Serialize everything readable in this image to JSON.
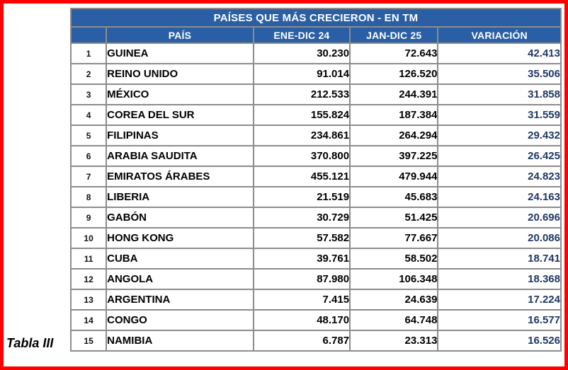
{
  "caption": "Tabla III",
  "table": {
    "title": "PAÍSES QUE MÁS CRECIERON - EN TM",
    "columns": {
      "rank": "",
      "country": "PAÍS",
      "period1": "ENE-DIC 24",
      "period2": "JAN-DIC 25",
      "variation": "VARIACIÓN"
    },
    "rows": [
      {
        "rank": "1",
        "country": "GUINEA",
        "period1": "30.230",
        "period2": "72.643",
        "variation": "42.413"
      },
      {
        "rank": "2",
        "country": "REINO UNIDO",
        "period1": "91.014",
        "period2": "126.520",
        "variation": "35.506"
      },
      {
        "rank": "3",
        "country": "MÉXICO",
        "period1": "212.533",
        "period2": "244.391",
        "variation": "31.858"
      },
      {
        "rank": "4",
        "country": "COREA DEL SUR",
        "period1": "155.824",
        "period2": "187.384",
        "variation": "31.559"
      },
      {
        "rank": "5",
        "country": "FILIPINAS",
        "period1": "234.861",
        "period2": "264.294",
        "variation": "29.432"
      },
      {
        "rank": "6",
        "country": "ARABIA SAUDITA",
        "period1": "370.800",
        "period2": "397.225",
        "variation": "26.425"
      },
      {
        "rank": "7",
        "country": "EMIRATOS ÁRABES",
        "period1": "455.121",
        "period2": "479.944",
        "variation": "24.823"
      },
      {
        "rank": "8",
        "country": "LIBERIA",
        "period1": "21.519",
        "period2": "45.683",
        "variation": "24.163"
      },
      {
        "rank": "9",
        "country": "GABÓN",
        "period1": "30.729",
        "period2": "51.425",
        "variation": "20.696"
      },
      {
        "rank": "10",
        "country": "HONG KONG",
        "period1": "57.582",
        "period2": "77.667",
        "variation": "20.086"
      },
      {
        "rank": "11",
        "country": "CUBA",
        "period1": "39.761",
        "period2": "58.502",
        "variation": "18.741"
      },
      {
        "rank": "12",
        "country": "ANGOLA",
        "period1": "87.980",
        "period2": "106.348",
        "variation": "18.368"
      },
      {
        "rank": "13",
        "country": "ARGENTINA",
        "period1": "7.415",
        "period2": "24.639",
        "variation": "17.224"
      },
      {
        "rank": "14",
        "country": "CONGO",
        "period1": "48.170",
        "period2": "64.748",
        "variation": "16.577"
      },
      {
        "rank": "15",
        "country": "NAMIBIA",
        "period1": "6.787",
        "period2": "23.313",
        "variation": "16.526"
      }
    ]
  },
  "colors": {
    "header_blue": "#2a5fa5",
    "grid_gray": "#8c8c8c",
    "variation_navy": "#1f3864",
    "frame_red": "#fe0000",
    "body_text": "#000000"
  },
  "chart_data": {
    "type": "table",
    "title": "PAÍSES QUE MÁS CRECIERON - EN TM",
    "units": "TM",
    "caption": "Tabla III",
    "columns": [
      "#",
      "PAÍS",
      "ENE-DIC 24",
      "JAN-DIC 25",
      "VARIACIÓN"
    ],
    "rows": [
      [
        1,
        "GUINEA",
        30230,
        72643,
        42413
      ],
      [
        2,
        "REINO UNIDO",
        91014,
        126520,
        35506
      ],
      [
        3,
        "MÉXICO",
        212533,
        244391,
        31858
      ],
      [
        4,
        "COREA DEL SUR",
        155824,
        187384,
        31559
      ],
      [
        5,
        "FILIPINAS",
        234861,
        264294,
        29432
      ],
      [
        6,
        "ARABIA SAUDITA",
        370800,
        397225,
        26425
      ],
      [
        7,
        "EMIRATOS ÁRABES",
        455121,
        479944,
        24823
      ],
      [
        8,
        "LIBERIA",
        21519,
        45683,
        24163
      ],
      [
        9,
        "GABÓN",
        30729,
        51425,
        20696
      ],
      [
        10,
        "HONG KONG",
        57582,
        77667,
        20086
      ],
      [
        11,
        "CUBA",
        39761,
        58502,
        18741
      ],
      [
        12,
        "ANGOLA",
        87980,
        106348,
        18368
      ],
      [
        13,
        "ARGENTINA",
        7415,
        24639,
        17224
      ],
      [
        14,
        "CONGO",
        48170,
        64748,
        16577
      ],
      [
        15,
        "NAMIBIA",
        6787,
        23313,
        16526
      ]
    ]
  }
}
